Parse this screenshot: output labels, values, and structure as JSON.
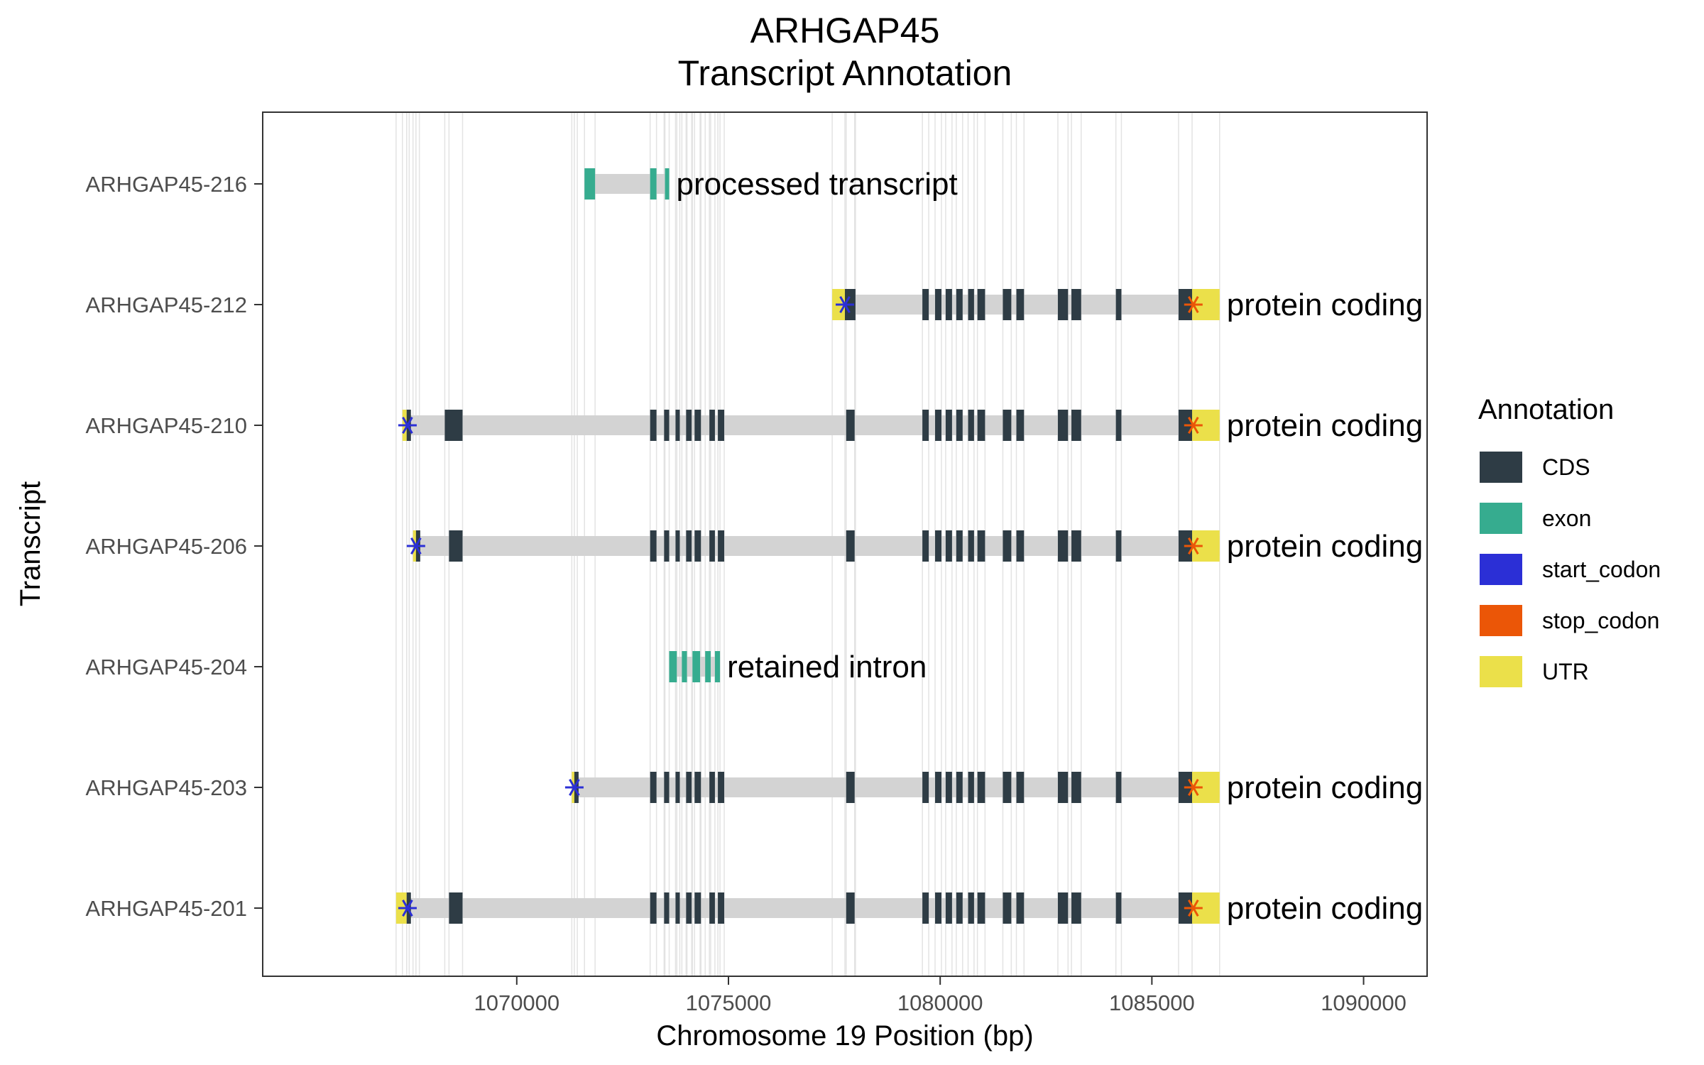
{
  "chart_data": {
    "type": "transcript-annotation",
    "title": "ARHGAP45",
    "subtitle": "Transcript Annotation",
    "xlabel": "Chromosome 19 Position (bp)",
    "ylabel": "Transcript",
    "xlim": [
      1064000,
      1091500
    ],
    "x_ticks": [
      1070000,
      1075000,
      1080000,
      1085000,
      1090000
    ],
    "x_tick_labels": [
      "1070000",
      "1075000",
      "1080000",
      "1085000",
      "1090000"
    ],
    "legend": {
      "title": "Annotation",
      "placement": "right",
      "entries": [
        {
          "key": "CDS",
          "label": "CDS",
          "color": "#2e3c45"
        },
        {
          "key": "exon",
          "label": "exon",
          "color": "#36ac8f"
        },
        {
          "key": "start_codon",
          "label": "start_codon",
          "color": "#2b2fd6"
        },
        {
          "key": "stop_codon",
          "label": "stop_codon",
          "color": "#eb5607"
        },
        {
          "key": "UTR",
          "label": "UTR",
          "color": "#ebe04a"
        }
      ]
    },
    "intron_color": "#d3d3d3",
    "transcripts": [
      {
        "name": "ARHGAP45-216",
        "biotype": "processed transcript",
        "start": 1071600,
        "end": 1073600,
        "features": [
          {
            "type": "exon",
            "start": 1071600,
            "end": 1071850
          },
          {
            "type": "exon",
            "start": 1073150,
            "end": 1073300
          },
          {
            "type": "exon",
            "start": 1073500,
            "end": 1073600
          }
        ]
      },
      {
        "name": "ARHGAP45-212",
        "biotype": "protein coding",
        "start": 1077450,
        "end": 1086600,
        "features": [
          {
            "type": "UTR",
            "start": 1077450,
            "end": 1077750
          },
          {
            "type": "CDS",
            "start": 1077750,
            "end": 1078000
          },
          {
            "type": "CDS",
            "start": 1079580,
            "end": 1079730
          },
          {
            "type": "CDS",
            "start": 1079880,
            "end": 1080030
          },
          {
            "type": "CDS",
            "start": 1080130,
            "end": 1080280
          },
          {
            "type": "CDS",
            "start": 1080380,
            "end": 1080530
          },
          {
            "type": "CDS",
            "start": 1080660,
            "end": 1080800
          },
          {
            "type": "CDS",
            "start": 1080880,
            "end": 1081060
          },
          {
            "type": "CDS",
            "start": 1081480,
            "end": 1081680
          },
          {
            "type": "CDS",
            "start": 1081800,
            "end": 1081980
          },
          {
            "type": "CDS",
            "start": 1082780,
            "end": 1083020
          },
          {
            "type": "CDS",
            "start": 1083100,
            "end": 1083330
          },
          {
            "type": "CDS",
            "start": 1084150,
            "end": 1084280
          },
          {
            "type": "CDS",
            "start": 1085630,
            "end": 1085950
          },
          {
            "type": "UTR",
            "start": 1085950,
            "end": 1086600
          },
          {
            "type": "start_codon",
            "pos": 1077750
          },
          {
            "type": "stop_codon",
            "pos": 1085980
          }
        ]
      },
      {
        "name": "ARHGAP45-210",
        "biotype": "protein coding",
        "start": 1067300,
        "end": 1086600,
        "features": [
          {
            "type": "UTR",
            "start": 1067300,
            "end": 1067400
          },
          {
            "type": "CDS",
            "start": 1067400,
            "end": 1067460
          },
          {
            "type": "CDS",
            "start": 1068300,
            "end": 1068720
          },
          {
            "type": "CDS",
            "start": 1073150,
            "end": 1073300
          },
          {
            "type": "CDS",
            "start": 1073480,
            "end": 1073600
          },
          {
            "type": "CDS",
            "start": 1073750,
            "end": 1073850
          },
          {
            "type": "CDS",
            "start": 1074000,
            "end": 1074130
          },
          {
            "type": "CDS",
            "start": 1074200,
            "end": 1074350
          },
          {
            "type": "CDS",
            "start": 1074550,
            "end": 1074680
          },
          {
            "type": "CDS",
            "start": 1074750,
            "end": 1074900
          },
          {
            "type": "CDS",
            "start": 1077780,
            "end": 1077980
          },
          {
            "type": "CDS",
            "start": 1079580,
            "end": 1079730
          },
          {
            "type": "CDS",
            "start": 1079880,
            "end": 1080030
          },
          {
            "type": "CDS",
            "start": 1080130,
            "end": 1080280
          },
          {
            "type": "CDS",
            "start": 1080380,
            "end": 1080530
          },
          {
            "type": "CDS",
            "start": 1080660,
            "end": 1080800
          },
          {
            "type": "CDS",
            "start": 1080880,
            "end": 1081060
          },
          {
            "type": "CDS",
            "start": 1081480,
            "end": 1081680
          },
          {
            "type": "CDS",
            "start": 1081800,
            "end": 1081980
          },
          {
            "type": "CDS",
            "start": 1082780,
            "end": 1083020
          },
          {
            "type": "CDS",
            "start": 1083100,
            "end": 1083330
          },
          {
            "type": "CDS",
            "start": 1084150,
            "end": 1084280
          },
          {
            "type": "CDS",
            "start": 1085630,
            "end": 1085950
          },
          {
            "type": "UTR",
            "start": 1085950,
            "end": 1086600
          },
          {
            "type": "start_codon",
            "pos": 1067420
          },
          {
            "type": "stop_codon",
            "pos": 1085980
          }
        ]
      },
      {
        "name": "ARHGAP45-206",
        "biotype": "protein coding",
        "start": 1067550,
        "end": 1086600,
        "features": [
          {
            "type": "UTR",
            "start": 1067550,
            "end": 1067620
          },
          {
            "type": "CDS",
            "start": 1067620,
            "end": 1067700
          },
          {
            "type": "CDS",
            "start": 1068400,
            "end": 1068720
          },
          {
            "type": "CDS",
            "start": 1073150,
            "end": 1073300
          },
          {
            "type": "CDS",
            "start": 1073480,
            "end": 1073600
          },
          {
            "type": "CDS",
            "start": 1073750,
            "end": 1073850
          },
          {
            "type": "CDS",
            "start": 1074000,
            "end": 1074130
          },
          {
            "type": "CDS",
            "start": 1074200,
            "end": 1074350
          },
          {
            "type": "CDS",
            "start": 1074550,
            "end": 1074680
          },
          {
            "type": "CDS",
            "start": 1074750,
            "end": 1074900
          },
          {
            "type": "CDS",
            "start": 1077780,
            "end": 1077980
          },
          {
            "type": "CDS",
            "start": 1079580,
            "end": 1079730
          },
          {
            "type": "CDS",
            "start": 1079880,
            "end": 1080030
          },
          {
            "type": "CDS",
            "start": 1080130,
            "end": 1080280
          },
          {
            "type": "CDS",
            "start": 1080380,
            "end": 1080530
          },
          {
            "type": "CDS",
            "start": 1080660,
            "end": 1080800
          },
          {
            "type": "CDS",
            "start": 1080880,
            "end": 1081060
          },
          {
            "type": "CDS",
            "start": 1081480,
            "end": 1081680
          },
          {
            "type": "CDS",
            "start": 1081800,
            "end": 1081980
          },
          {
            "type": "CDS",
            "start": 1082780,
            "end": 1083020
          },
          {
            "type": "CDS",
            "start": 1083100,
            "end": 1083330
          },
          {
            "type": "CDS",
            "start": 1084150,
            "end": 1084280
          },
          {
            "type": "CDS",
            "start": 1085630,
            "end": 1085950
          },
          {
            "type": "UTR",
            "start": 1085950,
            "end": 1086600
          },
          {
            "type": "start_codon",
            "pos": 1067620
          },
          {
            "type": "stop_codon",
            "pos": 1085980
          }
        ]
      },
      {
        "name": "ARHGAP45-204",
        "biotype": "retained intron",
        "start": 1073600,
        "end": 1074800,
        "features": [
          {
            "type": "exon",
            "start": 1073600,
            "end": 1073780
          },
          {
            "type": "exon",
            "start": 1073900,
            "end": 1074020
          },
          {
            "type": "exon",
            "start": 1074150,
            "end": 1074330
          },
          {
            "type": "exon",
            "start": 1074450,
            "end": 1074580
          },
          {
            "type": "exon",
            "start": 1074680,
            "end": 1074800
          }
        ]
      },
      {
        "name": "ARHGAP45-203",
        "biotype": "protein coding",
        "start": 1071300,
        "end": 1086600,
        "features": [
          {
            "type": "UTR",
            "start": 1071300,
            "end": 1071360
          },
          {
            "type": "CDS",
            "start": 1071360,
            "end": 1071430
          },
          {
            "type": "CDS",
            "start": 1073150,
            "end": 1073300
          },
          {
            "type": "CDS",
            "start": 1073480,
            "end": 1073600
          },
          {
            "type": "CDS",
            "start": 1073750,
            "end": 1073850
          },
          {
            "type": "CDS",
            "start": 1074000,
            "end": 1074130
          },
          {
            "type": "CDS",
            "start": 1074200,
            "end": 1074350
          },
          {
            "type": "CDS",
            "start": 1074550,
            "end": 1074680
          },
          {
            "type": "CDS",
            "start": 1074750,
            "end": 1074900
          },
          {
            "type": "CDS",
            "start": 1077780,
            "end": 1077980
          },
          {
            "type": "CDS",
            "start": 1079580,
            "end": 1079730
          },
          {
            "type": "CDS",
            "start": 1079880,
            "end": 1080030
          },
          {
            "type": "CDS",
            "start": 1080130,
            "end": 1080280
          },
          {
            "type": "CDS",
            "start": 1080380,
            "end": 1080530
          },
          {
            "type": "CDS",
            "start": 1080660,
            "end": 1080800
          },
          {
            "type": "CDS",
            "start": 1080880,
            "end": 1081060
          },
          {
            "type": "CDS",
            "start": 1081480,
            "end": 1081680
          },
          {
            "type": "CDS",
            "start": 1081800,
            "end": 1081980
          },
          {
            "type": "CDS",
            "start": 1082780,
            "end": 1083020
          },
          {
            "type": "CDS",
            "start": 1083100,
            "end": 1083330
          },
          {
            "type": "CDS",
            "start": 1084150,
            "end": 1084280
          },
          {
            "type": "CDS",
            "start": 1085630,
            "end": 1085950
          },
          {
            "type": "UTR",
            "start": 1085950,
            "end": 1086600
          },
          {
            "type": "start_codon",
            "pos": 1071360
          },
          {
            "type": "stop_codon",
            "pos": 1085980
          }
        ]
      },
      {
        "name": "ARHGAP45-201",
        "biotype": "protein coding",
        "start": 1067150,
        "end": 1086600,
        "features": [
          {
            "type": "UTR",
            "start": 1067150,
            "end": 1067400
          },
          {
            "type": "CDS",
            "start": 1067400,
            "end": 1067460
          },
          {
            "type": "CDS",
            "start": 1068400,
            "end": 1068720
          },
          {
            "type": "CDS",
            "start": 1073150,
            "end": 1073300
          },
          {
            "type": "CDS",
            "start": 1073480,
            "end": 1073600
          },
          {
            "type": "CDS",
            "start": 1073750,
            "end": 1073850
          },
          {
            "type": "CDS",
            "start": 1074000,
            "end": 1074130
          },
          {
            "type": "CDS",
            "start": 1074200,
            "end": 1074350
          },
          {
            "type": "CDS",
            "start": 1074550,
            "end": 1074680
          },
          {
            "type": "CDS",
            "start": 1074750,
            "end": 1074900
          },
          {
            "type": "CDS",
            "start": 1077780,
            "end": 1077980
          },
          {
            "type": "CDS",
            "start": 1079580,
            "end": 1079730
          },
          {
            "type": "CDS",
            "start": 1079880,
            "end": 1080030
          },
          {
            "type": "CDS",
            "start": 1080130,
            "end": 1080280
          },
          {
            "type": "CDS",
            "start": 1080380,
            "end": 1080530
          },
          {
            "type": "CDS",
            "start": 1080660,
            "end": 1080800
          },
          {
            "type": "CDS",
            "start": 1080880,
            "end": 1081060
          },
          {
            "type": "CDS",
            "start": 1081480,
            "end": 1081680
          },
          {
            "type": "CDS",
            "start": 1081800,
            "end": 1081980
          },
          {
            "type": "CDS",
            "start": 1082780,
            "end": 1083020
          },
          {
            "type": "CDS",
            "start": 1083100,
            "end": 1083330
          },
          {
            "type": "CDS",
            "start": 1084150,
            "end": 1084280
          },
          {
            "type": "CDS",
            "start": 1085630,
            "end": 1085950
          },
          {
            "type": "UTR",
            "start": 1085950,
            "end": 1086600
          },
          {
            "type": "start_codon",
            "pos": 1067420
          },
          {
            "type": "stop_codon",
            "pos": 1085980
          }
        ]
      }
    ]
  }
}
